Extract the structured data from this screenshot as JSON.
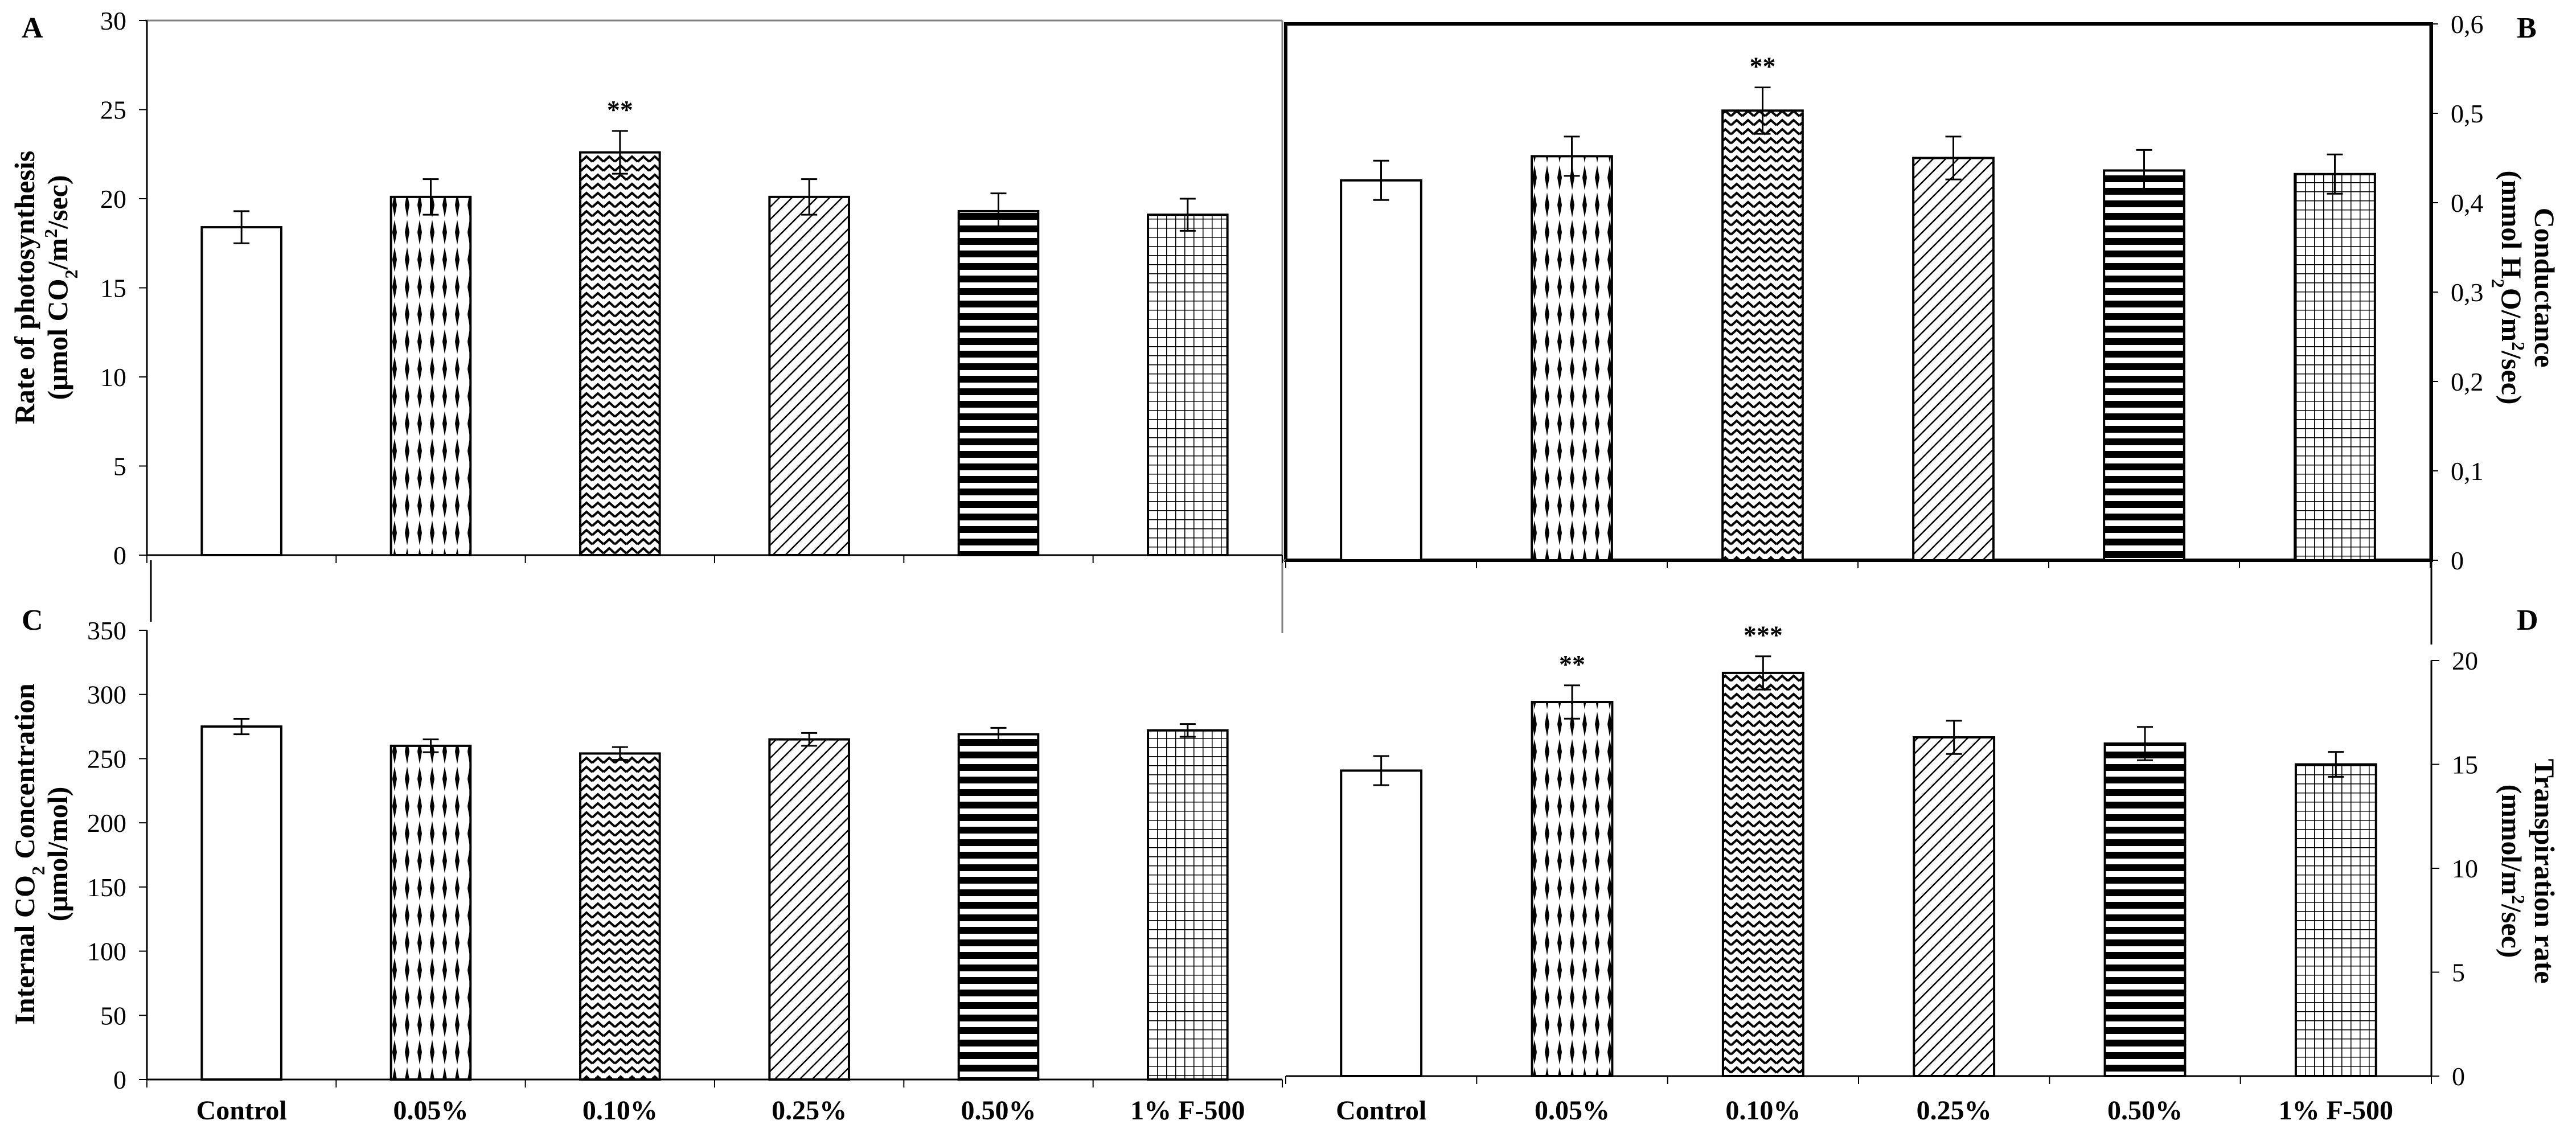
{
  "figure": {
    "categories": [
      "Control",
      "0.05%",
      "0.10%",
      "0.25%",
      "0.50%",
      "1% F-500"
    ]
  },
  "chart_data": [
    {
      "panel": "A",
      "type": "bar",
      "categories": [
        "Control",
        "0.05%",
        "0.10%",
        "0.25%",
        "0.50%",
        "1% F-500"
      ],
      "values": [
        18.4,
        20.1,
        22.6,
        20.1,
        19.3,
        19.1
      ],
      "errors": [
        0.9,
        1.0,
        1.2,
        1.0,
        1.0,
        0.9
      ],
      "significance": [
        "",
        "",
        "**",
        "",
        "",
        ""
      ],
      "ylabel_line1": "Rate of photosynthesis",
      "ylabel_line2_parts": [
        "(μmol CO",
        "2",
        "/m",
        "2",
        "/sec)"
      ],
      "ylim": [
        0,
        30
      ],
      "yticks": [
        0,
        5,
        10,
        15,
        20,
        25,
        30
      ],
      "ytick_labels": [
        "0",
        "5",
        "10",
        "15",
        "20",
        "25",
        "30"
      ],
      "yaxis_side": "left",
      "grid": false
    },
    {
      "panel": "B",
      "type": "bar",
      "categories": [
        "Control",
        "0.05%",
        "0.10%",
        "0.25%",
        "0.50%",
        "1% F-500"
      ],
      "values": [
        0.425,
        0.452,
        0.503,
        0.45,
        0.436,
        0.432
      ],
      "errors": [
        0.022,
        0.022,
        0.026,
        0.024,
        0.023,
        0.022
      ],
      "significance": [
        "",
        "",
        "**",
        "",
        "",
        ""
      ],
      "ylabel_line1": "Conductance",
      "ylabel_line2_parts": [
        "(mmol H",
        "2",
        "O/m",
        "2",
        "/sec)"
      ],
      "ylim": [
        0,
        0.6
      ],
      "yticks": [
        0,
        0.1,
        0.2,
        0.3,
        0.4,
        0.5,
        0.6
      ],
      "ytick_labels": [
        "0",
        "0,1",
        "0,2",
        "0,3",
        "0,4",
        "0,5",
        "0,6"
      ],
      "yaxis_side": "right",
      "grid": false
    },
    {
      "panel": "C",
      "type": "bar",
      "categories": [
        "Control",
        "0.05%",
        "0.10%",
        "0.25%",
        "0.50%",
        "1% F-500"
      ],
      "values": [
        275,
        260,
        254,
        265,
        269,
        272
      ],
      "errors": [
        6,
        5,
        5,
        5,
        5,
        5
      ],
      "significance": [
        "",
        "",
        "",
        "",
        "",
        ""
      ],
      "ylabel_line1": "Internal CO2 Concentration",
      "ylabel_line1_parts": [
        "Internal CO",
        "2",
        " Concentration"
      ],
      "ylabel_line2_parts": [
        "(μmol/mol)"
      ],
      "ylim": [
        0,
        350
      ],
      "yticks": [
        0,
        50,
        100,
        150,
        200,
        250,
        300,
        350
      ],
      "ytick_labels": [
        "0",
        "50",
        "100",
        "150",
        "200",
        "250",
        "300",
        "350"
      ],
      "yaxis_side": "left",
      "grid": false
    },
    {
      "panel": "D",
      "type": "bar",
      "categories": [
        "Control",
        "0.05%",
        "0.10%",
        "0.25%",
        "0.50%",
        "1% F-500"
      ],
      "values": [
        14.7,
        18.0,
        19.4,
        16.3,
        16.0,
        15.0
      ],
      "errors": [
        0.7,
        0.8,
        0.8,
        0.8,
        0.8,
        0.6
      ],
      "significance": [
        "",
        "**",
        "***",
        "",
        "",
        ""
      ],
      "ylabel_line1": "Transpiration rate",
      "ylabel_line2_parts": [
        "(mmol/m",
        "2",
        "/sec)"
      ],
      "ylim": [
        0,
        20
      ],
      "yticks": [
        0,
        5,
        10,
        15,
        20
      ],
      "ytick_labels": [
        "0",
        "5",
        "10",
        "15",
        "20"
      ],
      "yaxis_side": "right",
      "grid": false
    }
  ],
  "colors": {
    "bar_fill": "#ffffff",
    "bar_stroke": "#000000",
    "axis": "#000000",
    "frame": "#808080"
  },
  "patterns": [
    "blank",
    "diamond-dots",
    "zigzag",
    "diagonal-hatch",
    "horizontal-stripes",
    "grid"
  ]
}
